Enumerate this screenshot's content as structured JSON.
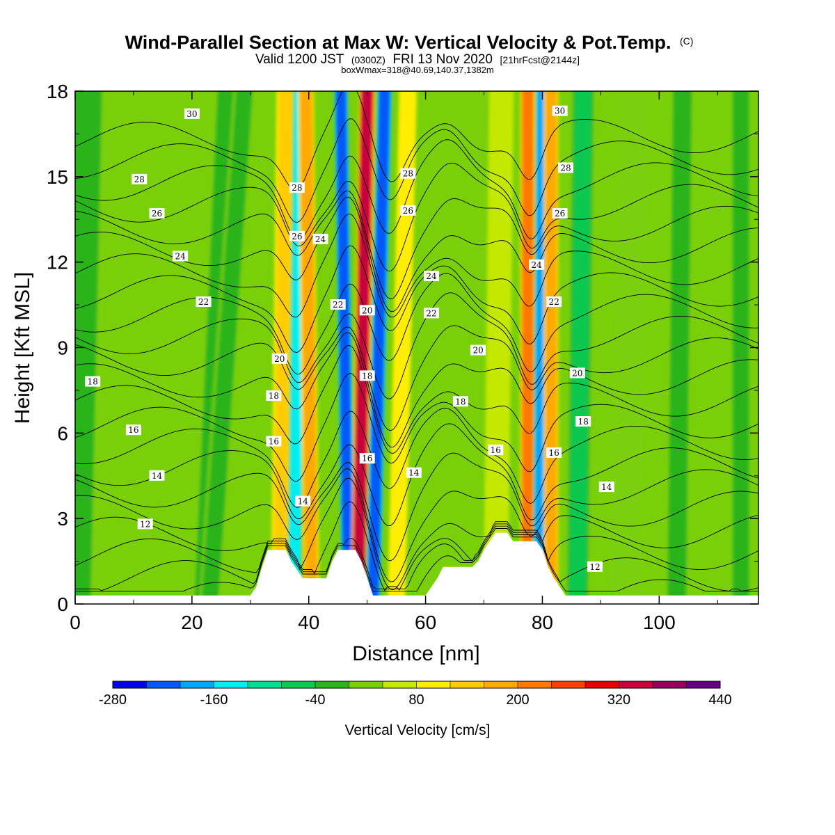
{
  "header": {
    "title_main": "Wind-Parallel Section at Max W: Vertical Velocity & Pot.Temp.",
    "title_mark": "(C)",
    "line2_a": "Valid 1200 JST",
    "line2_b": "(0300Z)",
    "line2_c": "FRI 13 Nov 2020",
    "line2_d": "[21hrFcst@2144z]",
    "line3": "boxWmax=318@40.69,140.37,1382m"
  },
  "chart_data": {
    "type": "heatmap",
    "title": "Wind-Parallel Section at Max W: Vertical Velocity & Pot.Temp.",
    "xlabel": "Distance [nm]",
    "ylabel": "Height [Kft MSL]",
    "xlim": [
      0,
      117
    ],
    "ylim": [
      0,
      18
    ],
    "x_ticks": [
      "0",
      "20",
      "40",
      "60",
      "80",
      "100"
    ],
    "y_ticks": [
      "0",
      "3",
      "6",
      "9",
      "12",
      "15",
      "18"
    ],
    "colorbar": {
      "label": "Vertical Velocity [cm/s]",
      "tick_labels": [
        "-280",
        "-160",
        "-40",
        "80",
        "200",
        "320",
        "440"
      ],
      "min": -280,
      "max": 440,
      "step": 40,
      "colors": [
        "#0000f0",
        "#0058f8",
        "#00a8f8",
        "#00eef0",
        "#00dc90",
        "#10c850",
        "#2cb41c",
        "#7ad008",
        "#c4e800",
        "#ffee00",
        "#ffcc00",
        "#ffaa00",
        "#ff7800",
        "#ff4000",
        "#e60000",
        "#c8003c",
        "#960058",
        "#640082"
      ]
    },
    "w_bands": [
      {
        "x_top": 2,
        "x_bot": 0,
        "w_cm_s": -10,
        "width_nm": 6
      },
      {
        "x_top": 26,
        "x_bot": 22,
        "w_cm_s": -10,
        "width_nm": 3
      },
      {
        "x_top": 29,
        "x_bot": 23,
        "w_cm_s": -40,
        "width_nm": 2.5
      },
      {
        "x_top": 36,
        "x_bot": 35,
        "w_cm_s": 150,
        "width_nm": 1.8
      },
      {
        "x_top": 38.5,
        "x_bot": 37.5,
        "w_cm_s": -150,
        "width_nm": 1.3
      },
      {
        "x_top": 39.5,
        "x_bot": 40.5,
        "w_cm_s": 160,
        "width_nm": 1.5
      },
      {
        "x_top": 45.5,
        "x_bot": 46.8,
        "w_cm_s": -230,
        "width_nm": 1.4
      },
      {
        "x_top": 50,
        "x_bot": 48.5,
        "w_cm_s": 330,
        "width_nm": 1.5
      },
      {
        "x_top": 53,
        "x_bot": 51,
        "w_cm_s": -240,
        "width_nm": 1.6
      },
      {
        "x_top": 57,
        "x_bot": 55,
        "w_cm_s": 110,
        "width_nm": 1.8
      },
      {
        "x_top": 73,
        "x_bot": 72,
        "w_cm_s": 40,
        "width_nm": 3
      },
      {
        "x_top": 77.5,
        "x_bot": 77.5,
        "w_cm_s": 230,
        "width_nm": 1.4
      },
      {
        "x_top": 80,
        "x_bot": 79.5,
        "w_cm_s": -190,
        "width_nm": 1.2
      },
      {
        "x_top": 81.5,
        "x_bot": 81.5,
        "w_cm_s": 190,
        "width_nm": 1.3
      },
      {
        "x_top": 87,
        "x_bot": 86,
        "w_cm_s": -60,
        "width_nm": 3
      },
      {
        "x_top": 96,
        "x_bot": 94,
        "w_cm_s": 20,
        "width_nm": 4
      },
      {
        "x_top": 104,
        "x_bot": 103,
        "w_cm_s": -30,
        "width_nm": 3
      },
      {
        "x_top": 114,
        "x_bot": 114,
        "w_cm_s": -40,
        "width_nm": 2.5
      }
    ],
    "isentropes": {
      "levels": [
        10,
        11,
        12,
        13,
        14,
        15,
        16,
        17,
        18,
        19,
        20,
        21,
        22,
        23,
        24,
        25,
        26,
        27,
        28,
        29,
        30,
        31
      ],
      "labeled": [
        {
          "value": "30",
          "x": 20,
          "y": 17.2
        },
        {
          "value": "28",
          "x": 11,
          "y": 14.9
        },
        {
          "value": "26",
          "x": 14,
          "y": 13.7
        },
        {
          "value": "24",
          "x": 18,
          "y": 12.2
        },
        {
          "value": "22",
          "x": 22,
          "y": 10.6
        },
        {
          "value": "18",
          "x": 3,
          "y": 7.8
        },
        {
          "value": "16",
          "x": 10,
          "y": 6.1
        },
        {
          "value": "14",
          "x": 14,
          "y": 4.5
        },
        {
          "value": "12",
          "x": 12,
          "y": 2.8
        },
        {
          "value": "28",
          "x": 38,
          "y": 14.6
        },
        {
          "value": "26",
          "x": 38,
          "y": 12.9
        },
        {
          "value": "24",
          "x": 42,
          "y": 12.8
        },
        {
          "value": "22",
          "x": 45,
          "y": 10.5
        },
        {
          "value": "20",
          "x": 35,
          "y": 8.6
        },
        {
          "value": "18",
          "x": 34,
          "y": 7.3
        },
        {
          "value": "16",
          "x": 34,
          "y": 5.7
        },
        {
          "value": "14",
          "x": 39,
          "y": 3.6
        },
        {
          "value": "20",
          "x": 50,
          "y": 10.3
        },
        {
          "value": "18",
          "x": 50,
          "y": 8.0
        },
        {
          "value": "16",
          "x": 50,
          "y": 5.1
        },
        {
          "value": "28",
          "x": 57,
          "y": 15.1
        },
        {
          "value": "26",
          "x": 57,
          "y": 13.8
        },
        {
          "value": "24",
          "x": 61,
          "y": 11.5
        },
        {
          "value": "22",
          "x": 61,
          "y": 10.2
        },
        {
          "value": "20",
          "x": 69,
          "y": 8.9
        },
        {
          "value": "18",
          "x": 66,
          "y": 7.1
        },
        {
          "value": "16",
          "x": 72,
          "y": 5.4
        },
        {
          "value": "14",
          "x": 58,
          "y": 4.6
        },
        {
          "value": "30",
          "x": 83,
          "y": 17.3
        },
        {
          "value": "28",
          "x": 84,
          "y": 15.3
        },
        {
          "value": "26",
          "x": 83,
          "y": 13.7
        },
        {
          "value": "24",
          "x": 79,
          "y": 11.9
        },
        {
          "value": "22",
          "x": 82,
          "y": 10.6
        },
        {
          "value": "20",
          "x": 86,
          "y": 8.1
        },
        {
          "value": "18",
          "x": 87,
          "y": 6.4
        },
        {
          "value": "16",
          "x": 82,
          "y": 5.3
        },
        {
          "value": "14",
          "x": 91,
          "y": 4.1
        },
        {
          "value": "12",
          "x": 89,
          "y": 1.3
        }
      ]
    },
    "terrain": [
      [
        0,
        0.3
      ],
      [
        30,
        0.3
      ],
      [
        31,
        0.6
      ],
      [
        32,
        1.3
      ],
      [
        33,
        1.9
      ],
      [
        36,
        1.9
      ],
      [
        37,
        1.5
      ],
      [
        38,
        1.2
      ],
      [
        39,
        0.9
      ],
      [
        43,
        0.9
      ],
      [
        44,
        1.5
      ],
      [
        45,
        1.9
      ],
      [
        48,
        1.9
      ],
      [
        49,
        1.5
      ],
      [
        50,
        0.9
      ],
      [
        51,
        0.3
      ],
      [
        60,
        0.3
      ],
      [
        61,
        0.6
      ],
      [
        62,
        0.9
      ],
      [
        63,
        1.3
      ],
      [
        68,
        1.3
      ],
      [
        69,
        1.5
      ],
      [
        70,
        1.9
      ],
      [
        71,
        2.2
      ],
      [
        72,
        2.5
      ],
      [
        74,
        2.5
      ],
      [
        75,
        2.2
      ],
      [
        79,
        2.2
      ],
      [
        80,
        1.9
      ],
      [
        81,
        1.3
      ],
      [
        82,
        0.9
      ],
      [
        83,
        0.6
      ],
      [
        84,
        0.3
      ],
      [
        117,
        0.3
      ]
    ]
  }
}
